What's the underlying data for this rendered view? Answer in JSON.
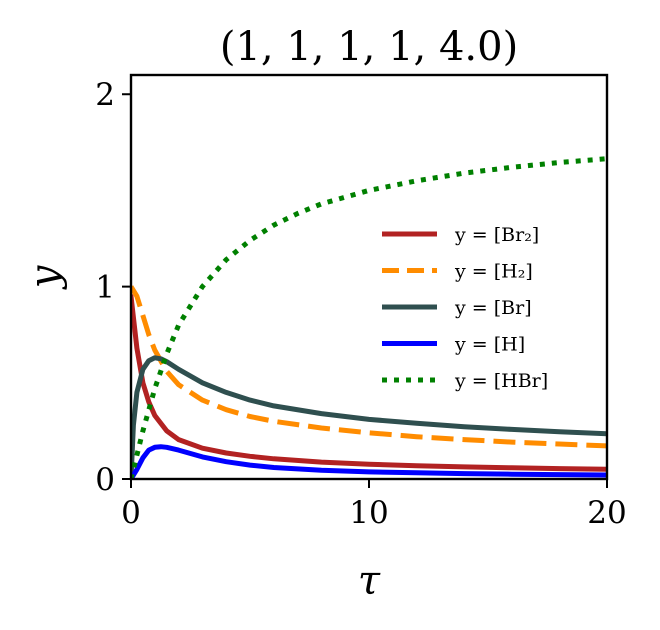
{
  "chart_data": {
    "type": "line",
    "title": "(1, 1, 1, 1, 4.0)",
    "xlabel": "τ",
    "ylabel": "y",
    "xlim": [
      0,
      20
    ],
    "ylim": [
      0,
      2.1
    ],
    "xticks": [
      0,
      10,
      20
    ],
    "yticks": [
      0,
      1,
      2
    ],
    "grid": false,
    "legend_position": "center-right",
    "series": [
      {
        "name": "y = [Br₂]",
        "color": "#b22222",
        "dash": "solid",
        "x": [
          0,
          0.25,
          0.5,
          0.75,
          1,
          1.5,
          2,
          3,
          4,
          5,
          6,
          8,
          10,
          12,
          14,
          16,
          18,
          20
        ],
        "y": [
          0.95,
          0.68,
          0.5,
          0.4,
          0.33,
          0.25,
          0.205,
          0.16,
          0.135,
          0.118,
          0.105,
          0.088,
          0.077,
          0.069,
          0.063,
          0.058,
          0.054,
          0.051
        ]
      },
      {
        "name": "y = [H₂]",
        "color": "#ff8c00",
        "dash": "dashed",
        "x": [
          0,
          0.25,
          0.5,
          0.75,
          1,
          1.5,
          2,
          3,
          4,
          5,
          6,
          8,
          10,
          12,
          14,
          16,
          18,
          20
        ],
        "y": [
          1.0,
          0.95,
          0.85,
          0.75,
          0.67,
          0.56,
          0.49,
          0.41,
          0.36,
          0.325,
          0.3,
          0.265,
          0.24,
          0.22,
          0.205,
          0.192,
          0.182,
          0.172
        ]
      },
      {
        "name": "y = [Br]",
        "color": "#2f4f4f",
        "dash": "solid",
        "x": [
          0,
          0.1,
          0.25,
          0.5,
          0.75,
          1,
          1.25,
          1.5,
          2,
          3,
          4,
          5,
          6,
          8,
          10,
          12,
          14,
          16,
          18,
          20
        ],
        "y": [
          0.0,
          0.28,
          0.45,
          0.57,
          0.615,
          0.63,
          0.625,
          0.61,
          0.57,
          0.5,
          0.45,
          0.41,
          0.38,
          0.34,
          0.31,
          0.29,
          0.272,
          0.258,
          0.246,
          0.235
        ]
      },
      {
        "name": "y = [H]",
        "color": "#0000ff",
        "dash": "solid",
        "x": [
          0,
          0.25,
          0.5,
          0.75,
          1,
          1.25,
          1.5,
          2,
          3,
          4,
          5,
          6,
          8,
          10,
          12,
          14,
          16,
          18,
          20
        ],
        "y": [
          0.0,
          0.05,
          0.11,
          0.15,
          0.165,
          0.168,
          0.165,
          0.15,
          0.115,
          0.09,
          0.072,
          0.06,
          0.045,
          0.037,
          0.032,
          0.028,
          0.025,
          0.023,
          0.021
        ]
      },
      {
        "name": "y = [HBr]",
        "color": "#008000",
        "dash": "dotted",
        "x": [
          0,
          0.5,
          1,
          1.5,
          2,
          3,
          4,
          5,
          6,
          7,
          8,
          10,
          12,
          14,
          16,
          18,
          20
        ],
        "y": [
          0.0,
          0.25,
          0.47,
          0.65,
          0.8,
          1.0,
          1.14,
          1.24,
          1.32,
          1.38,
          1.43,
          1.5,
          1.55,
          1.59,
          1.62,
          1.645,
          1.665
        ]
      }
    ]
  }
}
